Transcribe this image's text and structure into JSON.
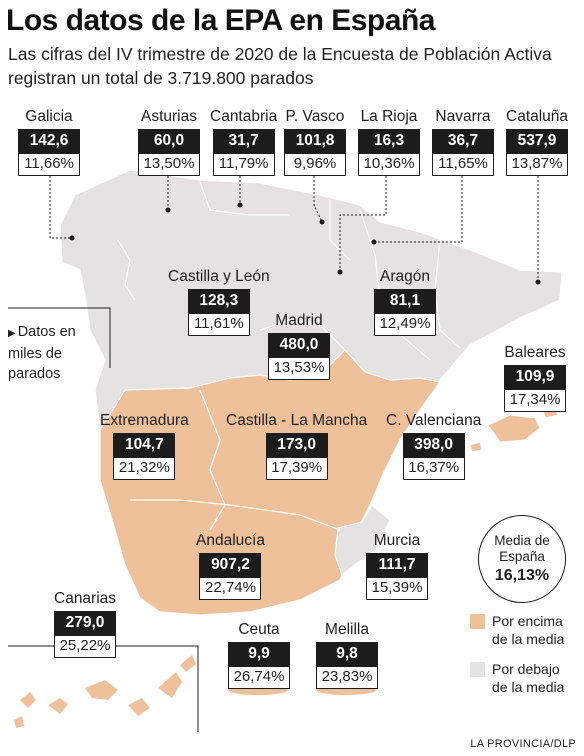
{
  "title": "Los datos de la EPA en España",
  "subtitle": "Las cifras del IV trimestre de 2020 de la Encuesta de Población Activa registran un total de 3.719.800 parados",
  "note": "Datos en miles de parados",
  "average": {
    "label": "Media de España",
    "value": "16,13%"
  },
  "legend": [
    {
      "label": "Por encima de la media",
      "color": "#efc19b"
    },
    {
      "label": "Por debajo de la media",
      "color": "#e4e3e1"
    }
  ],
  "colors": {
    "above": "#efc19b",
    "below": "#e4e3e1",
    "box": "#1c1c1c"
  },
  "regions": [
    {
      "name": "Galicia",
      "value": "142,6",
      "pct": "11,66%",
      "above_average": false
    },
    {
      "name": "Asturias",
      "value": "60,0",
      "pct": "13,50%",
      "above_average": false
    },
    {
      "name": "Cantabria",
      "value": "31,7",
      "pct": "11,79%",
      "above_average": false
    },
    {
      "name": "P. Vasco",
      "value": "101,8",
      "pct": "9,96%",
      "above_average": false
    },
    {
      "name": "La Rioja",
      "value": "16,3",
      "pct": "10,36%",
      "above_average": false
    },
    {
      "name": "Navarra",
      "value": "36,7",
      "pct": "11,65%",
      "above_average": false
    },
    {
      "name": "Cataluña",
      "value": "537,9",
      "pct": "13,87%",
      "above_average": false
    },
    {
      "name": "Castilla y León",
      "value": "128,3",
      "pct": "11,61%",
      "above_average": false
    },
    {
      "name": "Aragón",
      "value": "81,1",
      "pct": "12,49%",
      "above_average": false
    },
    {
      "name": "Madrid",
      "value": "480,0",
      "pct": "13,53%",
      "above_average": false
    },
    {
      "name": "Baleares",
      "value": "109,9",
      "pct": "17,34%",
      "above_average": true
    },
    {
      "name": "Extremadura",
      "value": "104,7",
      "pct": "21,32%",
      "above_average": true
    },
    {
      "name": "Castilla - La Mancha",
      "value": "173,0",
      "pct": "17,39%",
      "above_average": true
    },
    {
      "name": "C. Valenciana",
      "value": "398,0",
      "pct": "16,37%",
      "above_average": true
    },
    {
      "name": "Andalucía",
      "value": "907,2",
      "pct": "22,74%",
      "above_average": true
    },
    {
      "name": "Murcia",
      "value": "111,7",
      "pct": "15,39%",
      "above_average": false
    },
    {
      "name": "Canarias",
      "value": "279,0",
      "pct": "25,22%",
      "above_average": true
    },
    {
      "name": "Ceuta",
      "value": "9,9",
      "pct": "26,74%",
      "above_average": true
    },
    {
      "name": "Melilla",
      "value": "9,8",
      "pct": "23,83%",
      "above_average": true
    }
  ],
  "source": "LA PROVINCIA/DLP"
}
